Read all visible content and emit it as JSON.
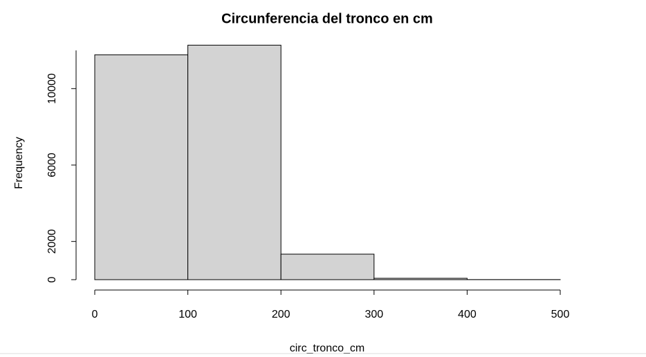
{
  "chart_data": {
    "type": "histogram",
    "title": "Circunferencia del tronco en cm",
    "x_label": "circ_tronco_cm",
    "y_label": "Frequency",
    "bins": [
      0,
      100,
      200,
      300,
      400,
      500
    ],
    "values": [
      11770,
      12275,
      1336,
      72,
      5
    ],
    "color": "#d3d3d3",
    "edgecolor": "#000000",
    "xlim": [
      0,
      500
    ],
    "xticks": [
      0,
      100,
      200,
      300,
      400,
      500
    ],
    "ylim": [
      0,
      12000
    ],
    "yticks": [
      0,
      2000,
      6000,
      10000
    ],
    "grid": false
  }
}
